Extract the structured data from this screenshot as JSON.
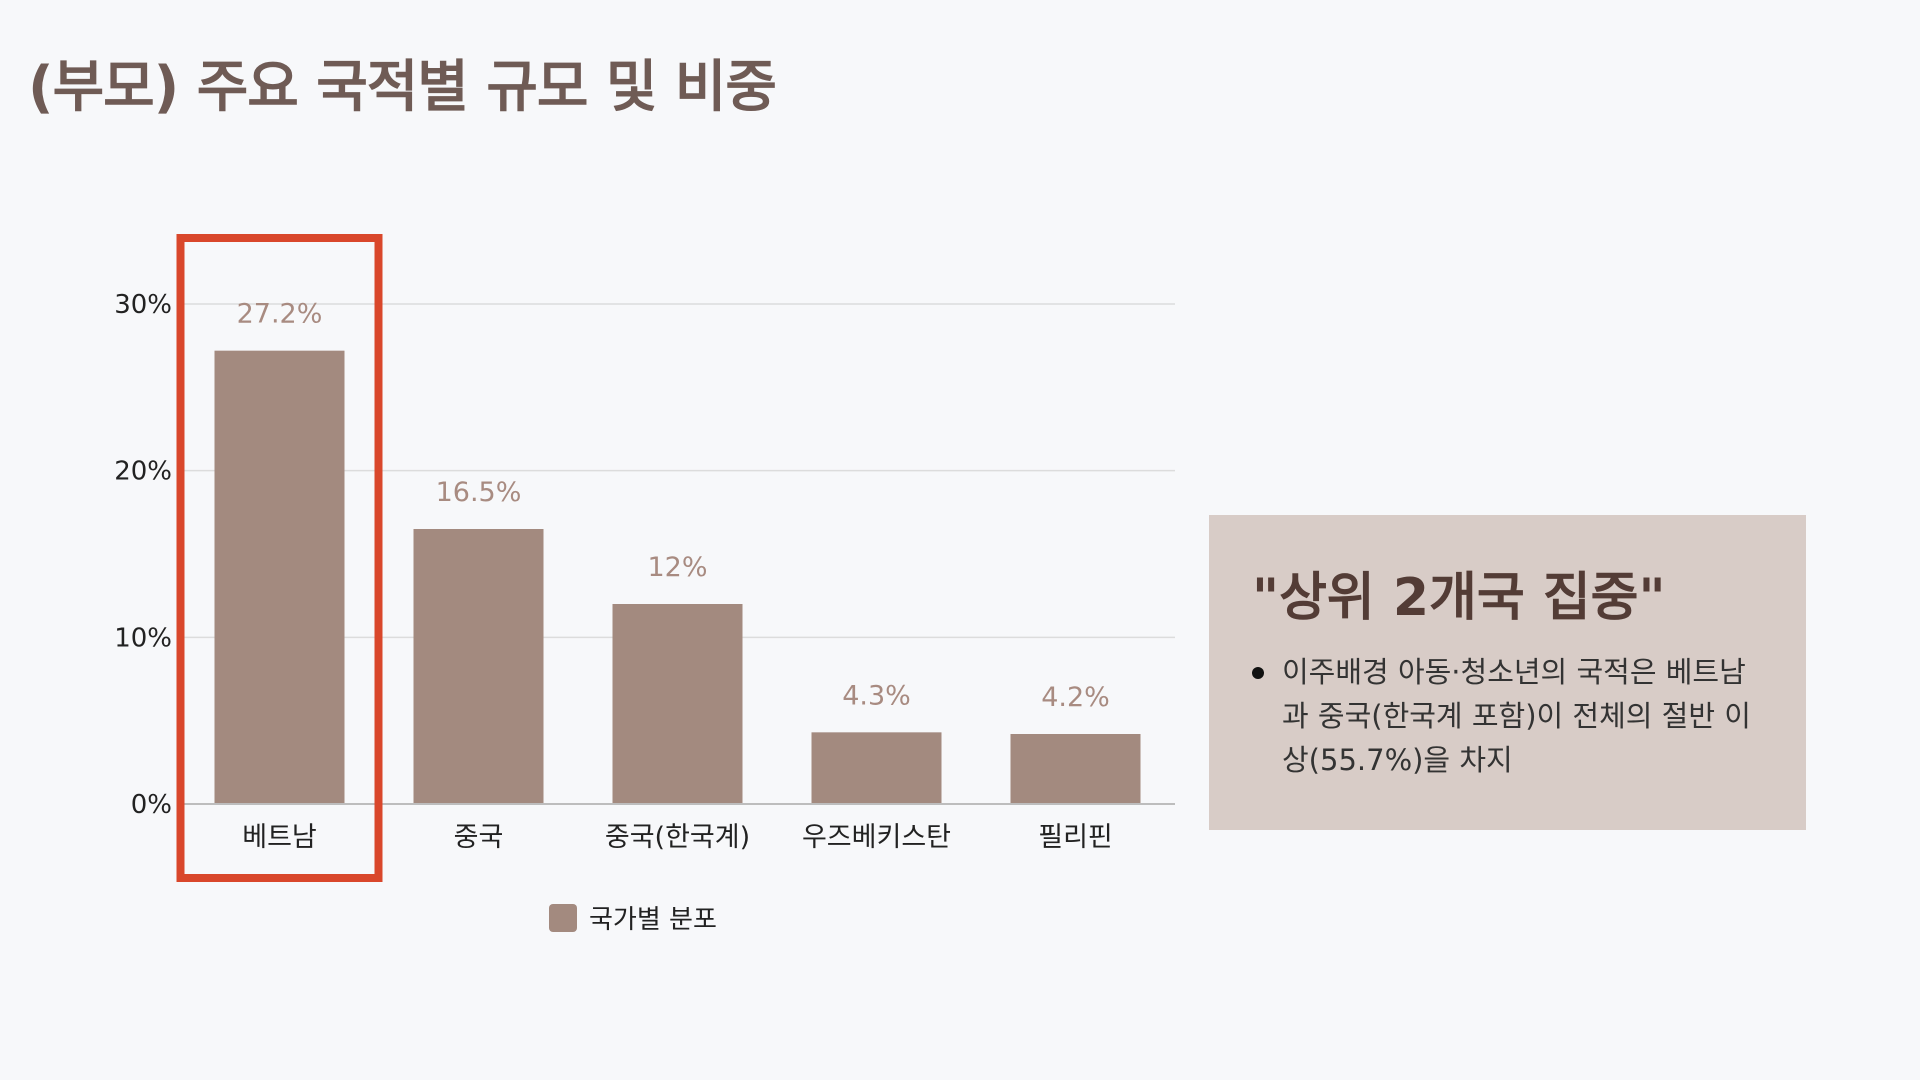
{
  "slide": {
    "title": "(부모) 주요 국적별 규모 및 비중"
  },
  "chart_data": {
    "type": "bar",
    "categories": [
      "베트남",
      "중국",
      "중국(한국계)",
      "우즈베키스탄",
      "필리핀"
    ],
    "values": [
      27.2,
      16.5,
      12,
      4.3,
      4.2
    ],
    "data_labels": [
      "27.2%",
      "16.5%",
      "12%",
      "4.3%",
      "4.2%"
    ],
    "ylim": [
      0,
      30
    ],
    "yticks": [
      0,
      10,
      20,
      30
    ],
    "ytick_labels": [
      "0%",
      "10%",
      "20%",
      "30%"
    ],
    "grid": true,
    "legend": {
      "position": "bottom",
      "entries": [
        "국가별 분포"
      ]
    },
    "series": [
      {
        "name": "국가별 분포",
        "values": [
          27.2,
          16.5,
          12,
          4.3,
          4.2
        ]
      }
    ],
    "highlighted_category": "베트남",
    "colors": {
      "bar": "#a38a7f",
      "highlight": "#d9472b",
      "grid": "#dcdcdc",
      "axis": "#bdbdbd"
    }
  },
  "callout": {
    "title": "\"상위 2개국 집중\"",
    "bullets": [
      "이주배경 아동·청소년의 국적은 베트남과 중국(한국계 포함)이 전체의 절반 이상(55.7%)을 차지"
    ]
  }
}
